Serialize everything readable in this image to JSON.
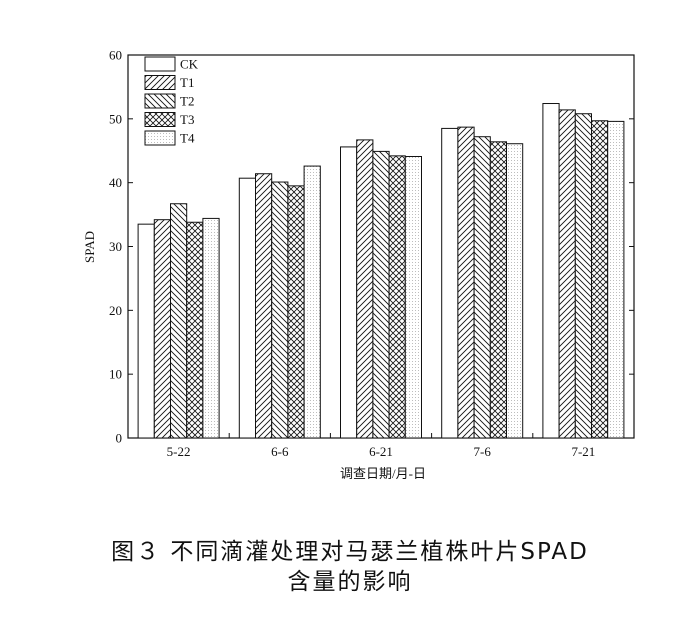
{
  "chart_data": {
    "type": "bar",
    "xlabel": "调查日期/月-日",
    "ylabel": "SPAD",
    "ylim": [
      0,
      60
    ],
    "yticks": [
      0,
      10,
      20,
      30,
      40,
      50,
      60
    ],
    "grid": false,
    "legend_position": "top-left",
    "categories": [
      "5-22",
      "6-6",
      "6-21",
      "7-6",
      "7-21"
    ],
    "series": [
      {
        "name": "CK",
        "pattern": "blank",
        "values": [
          33.5,
          40.7,
          45.6,
          48.5,
          52.4
        ]
      },
      {
        "name": "T1",
        "pattern": "forward-hatch",
        "values": [
          34.2,
          41.4,
          46.7,
          48.7,
          51.4
        ]
      },
      {
        "name": "T2",
        "pattern": "backward-hatch",
        "values": [
          36.7,
          40.1,
          44.9,
          47.2,
          50.8
        ]
      },
      {
        "name": "T3",
        "pattern": "cross-hatch",
        "values": [
          33.8,
          39.5,
          44.2,
          46.4,
          49.7
        ]
      },
      {
        "name": "T4",
        "pattern": "dotted",
        "values": [
          34.4,
          42.6,
          44.1,
          46.1,
          49.6
        ]
      }
    ]
  },
  "caption": {
    "line1": "图３ 不同滴灌处理对马瑟兰植株叶片SPAD",
    "line2": "含量的影响"
  }
}
